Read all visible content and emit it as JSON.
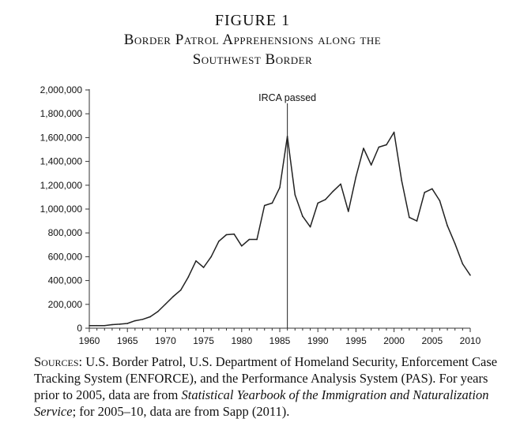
{
  "figure": {
    "label": "FIGURE 1",
    "title_line1": "Border Patrol Apprehensions along the",
    "title_line2": "Southwest Border"
  },
  "chart_data": {
    "type": "line",
    "title": "Border Patrol Apprehensions along the Southwest Border",
    "xlabel": "",
    "ylabel": "",
    "xlim": [
      1960,
      2010
    ],
    "ylim": [
      0,
      2000000
    ],
    "x_ticks": [
      1960,
      1965,
      1970,
      1975,
      1980,
      1985,
      1990,
      1995,
      2000,
      2005,
      2010
    ],
    "y_ticks": [
      0,
      200000,
      400000,
      600000,
      800000,
      1000000,
      1200000,
      1400000,
      1600000,
      1800000,
      2000000
    ],
    "y_tick_labels": [
      "0",
      "200,000",
      "400,000",
      "600,000",
      "800,000",
      "1,000,000",
      "1,200,000",
      "1,400,000",
      "1,600,000",
      "1,800,000",
      "2,000,000"
    ],
    "grid": false,
    "line_color": "#222222",
    "series": [
      {
        "x": [
          1960,
          1961,
          1962,
          1963,
          1964,
          1965,
          1966,
          1967,
          1968,
          1969,
          1970,
          1971,
          1972,
          1973,
          1974,
          1975,
          1976,
          1977,
          1978,
          1979,
          1980,
          1981,
          1982,
          1983,
          1984,
          1985,
          1986,
          1987,
          1988,
          1989,
          1990,
          1991,
          1992,
          1993,
          1994,
          1995,
          1996,
          1997,
          1998,
          1999,
          2000,
          2001,
          2002,
          2003,
          2004,
          2005,
          2006,
          2007,
          2008,
          2009,
          2010
        ],
        "values": [
          21000,
          22000,
          22000,
          30000,
          34000,
          40000,
          62000,
          74000,
          96000,
          140000,
          202000,
          265000,
          320000,
          430000,
          565000,
          510000,
          600000,
          730000,
          785000,
          790000,
          690000,
          745000,
          745000,
          1030000,
          1050000,
          1180000,
          1610000,
          1120000,
          940000,
          850000,
          1050000,
          1080000,
          1150000,
          1210000,
          980000,
          1270000,
          1510000,
          1370000,
          1520000,
          1540000,
          1645000,
          1240000,
          930000,
          900000,
          1140000,
          1170000,
          1070000,
          860000,
          710000,
          540000,
          445000
        ]
      }
    ],
    "annotations": [
      {
        "x": 1986,
        "text": "IRCA passed"
      }
    ]
  },
  "sources": {
    "lead": "Sources:",
    "part1": " U.S. Border Patrol, U.S. Department of Homeland Security, Enforcement Case Tracking System (ENFORCE), and the Performance Analysis System (PAS). For years prior to 2005, data are from ",
    "ital": "Statistical Yearbook of the Immigration and Naturalization Service",
    "part2": "; for 2005–10, data are from Sapp (2011)."
  }
}
